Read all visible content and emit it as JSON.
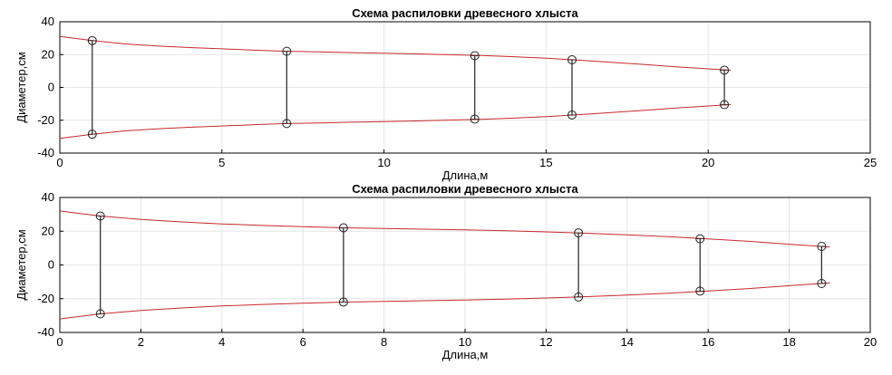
{
  "chart_data": [
    {
      "type": "line",
      "title": "Схема распиловки древесного хлыста",
      "xlabel": "Длина,м",
      "ylabel": "Диаметер,см",
      "xlim": [
        0,
        25
      ],
      "ylim": [
        -40,
        40
      ],
      "xticks": [
        0,
        5,
        10,
        15,
        20,
        25
      ],
      "yticks": [
        -40,
        -20,
        0,
        20,
        40
      ],
      "grid": true,
      "colors": {
        "profile": "#c8282d",
        "cut": "#222222",
        "marker": "#222222"
      },
      "profile": {
        "x": [
          0,
          1,
          2,
          3,
          4,
          5,
          6,
          7,
          8,
          9,
          10,
          11,
          12,
          13,
          14,
          15,
          16,
          17,
          18,
          19,
          20,
          20.7
        ],
        "upper": [
          31,
          28.5,
          26.5,
          25.2,
          24.3,
          23.5,
          22.7,
          22,
          21.6,
          21.2,
          20.8,
          20.4,
          19.9,
          19.4,
          18.7,
          17.8,
          16.6,
          15.3,
          14,
          12.6,
          11.3,
          10.5
        ]
      },
      "cuts": [
        {
          "x": 1,
          "top": 28.5,
          "bottom": -28.5
        },
        {
          "x": 7,
          "top": 22,
          "bottom": -22
        },
        {
          "x": 12.8,
          "top": 19.3,
          "bottom": -19.3
        },
        {
          "x": 15.8,
          "top": 16.8,
          "bottom": -16.8
        },
        {
          "x": 20.5,
          "top": 10.5,
          "bottom": -10.5
        }
      ]
    },
    {
      "type": "line",
      "title": "Схема распиловки древесного хлыста",
      "xlabel": "Длина,м",
      "ylabel": "Диаметер,см",
      "xlim": [
        0,
        20
      ],
      "ylim": [
        -40,
        40
      ],
      "xticks": [
        0,
        2,
        4,
        6,
        8,
        10,
        12,
        14,
        16,
        18,
        20
      ],
      "yticks": [
        -40,
        -20,
        0,
        20,
        40
      ],
      "grid": true,
      "colors": {
        "profile": "#c8282d",
        "cut": "#222222",
        "marker": "#222222"
      },
      "profile": {
        "x": [
          0,
          1,
          2,
          3,
          4,
          5,
          6,
          7,
          8,
          9,
          10,
          11,
          12,
          13,
          14,
          15,
          16,
          17,
          18,
          19
        ],
        "upper": [
          32,
          29,
          27,
          25.5,
          24.3,
          23.4,
          22.7,
          22,
          21.6,
          21.2,
          20.8,
          20.3,
          19.6,
          18.8,
          17.9,
          16.8,
          15.4,
          14,
          12.3,
          10.6
        ]
      },
      "cuts": [
        {
          "x": 1,
          "top": 29,
          "bottom": -29
        },
        {
          "x": 7,
          "top": 22,
          "bottom": -22
        },
        {
          "x": 12.8,
          "top": 19,
          "bottom": -19
        },
        {
          "x": 15.8,
          "top": 15.5,
          "bottom": -15.5
        },
        {
          "x": 18.8,
          "top": 11,
          "bottom": -11
        }
      ]
    }
  ]
}
